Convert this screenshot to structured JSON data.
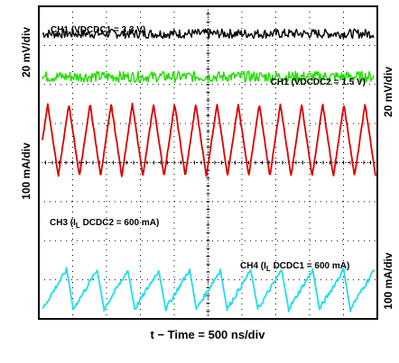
{
  "chart_data": {
    "type": "line",
    "title": "",
    "xlabel": "t − Time = 500 ns/div",
    "x_divisions": 10,
    "y_divisions": 8,
    "grid": true,
    "channels": [
      {
        "id": "ch1_top",
        "label": "CH1 (VDCDC1 = 3.3 V)",
        "scale_label": "20 mV/div",
        "color": "#000000",
        "waveform": "noise",
        "baseline_div": 3.3,
        "amplitude_div": 0.12
      },
      {
        "id": "ch2",
        "label": "CH1 (VDCDC2 = 1.5 V)",
        "scale_label": "20 mV/div",
        "color": "#22dd00",
        "waveform": "noise",
        "baseline_div": 2.2,
        "amplitude_div": 0.14
      },
      {
        "id": "ch3",
        "label_prefix": "CH3 (I",
        "label_sub": "L",
        "label_suffix": " DCDC2 = 600 mA)",
        "scale_label": "100 mA/div",
        "color": "#dd0000",
        "waveform": "triangle",
        "periods_per_div": 1.6,
        "high_div": 1.5,
        "low_div": -0.35
      },
      {
        "id": "ch4",
        "label_prefix": "CH4 (I",
        "label_sub": "L",
        "label_suffix": " DCDC1 = 600 mA)",
        "scale_label": "100 mA/div",
        "color": "#22ddee",
        "waveform": "sawtooth",
        "periods_per_div": 1.1,
        "high_div": -2.75,
        "low_div": -3.75
      }
    ]
  }
}
